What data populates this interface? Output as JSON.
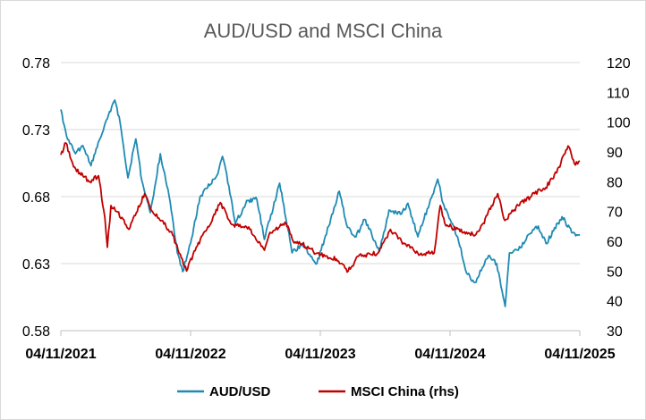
{
  "chart_data": {
    "type": "line",
    "title": "AUD/USD and MSCI China",
    "x_tick_labels": [
      "04/11/2021",
      "04/11/2022",
      "04/11/2023",
      "04/11/2024",
      "04/11/2025"
    ],
    "x_range": [
      "2021-11-04",
      "2025-11-04"
    ],
    "y_left": {
      "ticks": [
        "0.58",
        "0.63",
        "0.68",
        "0.73",
        "0.78"
      ],
      "range": [
        0.58,
        0.78
      ]
    },
    "y_right": {
      "ticks": [
        "30",
        "40",
        "50",
        "60",
        "70",
        "80",
        "90",
        "100",
        "110",
        "120"
      ],
      "range": [
        30,
        120
      ]
    },
    "grid": true,
    "legend_position": "bottom",
    "series": [
      {
        "name": "AUD/USD",
        "axis": "left",
        "color": "#1f8bb3",
        "points": [
          [
            "2021-11-04",
            0.745
          ],
          [
            "2021-11-20",
            0.725
          ],
          [
            "2021-12-15",
            0.712
          ],
          [
            "2022-01-05",
            0.718
          ],
          [
            "2022-01-28",
            0.703
          ],
          [
            "2022-02-20",
            0.722
          ],
          [
            "2022-03-15",
            0.738
          ],
          [
            "2022-04-05",
            0.752
          ],
          [
            "2022-04-20",
            0.735
          ],
          [
            "2022-05-12",
            0.694
          ],
          [
            "2022-06-03",
            0.723
          ],
          [
            "2022-06-20",
            0.692
          ],
          [
            "2022-07-14",
            0.668
          ],
          [
            "2022-08-11",
            0.712
          ],
          [
            "2022-09-05",
            0.68
          ],
          [
            "2022-09-28",
            0.638
          ],
          [
            "2022-10-13",
            0.624
          ],
          [
            "2022-11-04",
            0.645
          ],
          [
            "2022-12-01",
            0.68
          ],
          [
            "2023-01-20",
            0.697
          ],
          [
            "2023-02-02",
            0.71
          ],
          [
            "2023-02-20",
            0.688
          ],
          [
            "2023-03-10",
            0.66
          ],
          [
            "2023-04-14",
            0.677
          ],
          [
            "2023-05-10",
            0.678
          ],
          [
            "2023-05-31",
            0.648
          ],
          [
            "2023-07-13",
            0.69
          ],
          [
            "2023-08-17",
            0.638
          ],
          [
            "2023-09-15",
            0.645
          ],
          [
            "2023-10-26",
            0.63
          ],
          [
            "2023-12-28",
            0.684
          ],
          [
            "2024-01-20",
            0.657
          ],
          [
            "2024-02-13",
            0.65
          ],
          [
            "2024-03-08",
            0.663
          ],
          [
            "2024-04-19",
            0.639
          ],
          [
            "2024-05-16",
            0.67
          ],
          [
            "2024-06-20",
            0.667
          ],
          [
            "2024-07-08",
            0.675
          ],
          [
            "2024-08-05",
            0.65
          ],
          [
            "2024-09-30",
            0.693
          ],
          [
            "2024-10-15",
            0.675
          ],
          [
            "2024-11-04",
            0.663
          ],
          [
            "2024-11-25",
            0.65
          ],
          [
            "2024-12-20",
            0.623
          ],
          [
            "2025-01-13",
            0.616
          ],
          [
            "2025-02-20",
            0.636
          ],
          [
            "2025-03-15",
            0.63
          ],
          [
            "2025-04-08",
            0.598
          ],
          [
            "2025-04-20",
            0.638
          ],
          [
            "2025-05-15",
            0.64
          ],
          [
            "2025-06-15",
            0.652
          ],
          [
            "2025-07-10",
            0.658
          ],
          [
            "2025-08-01",
            0.645
          ],
          [
            "2025-09-15",
            0.665
          ],
          [
            "2025-10-15",
            0.653
          ],
          [
            "2025-11-04",
            0.651
          ]
        ]
      },
      {
        "name": "MSCI China (rhs)",
        "axis": "right",
        "color": "#c00000",
        "points": [
          [
            "2021-11-04",
            89
          ],
          [
            "2021-11-18",
            93
          ],
          [
            "2021-12-10",
            85
          ],
          [
            "2022-01-05",
            82
          ],
          [
            "2022-01-25",
            80
          ],
          [
            "2022-02-18",
            82
          ],
          [
            "2022-03-08",
            68
          ],
          [
            "2022-03-15",
            58
          ],
          [
            "2022-03-25",
            72
          ],
          [
            "2022-04-25",
            68
          ],
          [
            "2022-05-15",
            64
          ],
          [
            "2022-06-28",
            76
          ],
          [
            "2022-07-20",
            70
          ],
          [
            "2022-08-15",
            67
          ],
          [
            "2022-09-15",
            62
          ],
          [
            "2022-10-24",
            50
          ],
          [
            "2022-11-20",
            58
          ],
          [
            "2022-12-20",
            64
          ],
          [
            "2023-01-27",
            73
          ],
          [
            "2023-02-25",
            66
          ],
          [
            "2023-03-20",
            65
          ],
          [
            "2023-04-20",
            64
          ],
          [
            "2023-05-31",
            57
          ],
          [
            "2023-06-16",
            63
          ],
          [
            "2023-07-31",
            66
          ],
          [
            "2023-08-20",
            60
          ],
          [
            "2023-09-15",
            59
          ],
          [
            "2023-10-25",
            56
          ],
          [
            "2023-12-20",
            54
          ],
          [
            "2024-01-22",
            50
          ],
          [
            "2024-02-20",
            55
          ],
          [
            "2024-04-15",
            56
          ],
          [
            "2024-05-20",
            64
          ],
          [
            "2024-06-20",
            60
          ],
          [
            "2024-08-05",
            56
          ],
          [
            "2024-09-20",
            56
          ],
          [
            "2024-10-07",
            72
          ],
          [
            "2024-10-20",
            66
          ],
          [
            "2024-11-20",
            64
          ],
          [
            "2025-01-13",
            62
          ],
          [
            "2025-02-05",
            66
          ],
          [
            "2025-03-18",
            76
          ],
          [
            "2025-04-07",
            67
          ],
          [
            "2025-05-15",
            72
          ],
          [
            "2025-06-30",
            76
          ],
          [
            "2025-07-31",
            78
          ],
          [
            "2025-08-31",
            83
          ],
          [
            "2025-10-02",
            92
          ],
          [
            "2025-10-20",
            86
          ],
          [
            "2025-11-04",
            87
          ]
        ]
      }
    ]
  }
}
